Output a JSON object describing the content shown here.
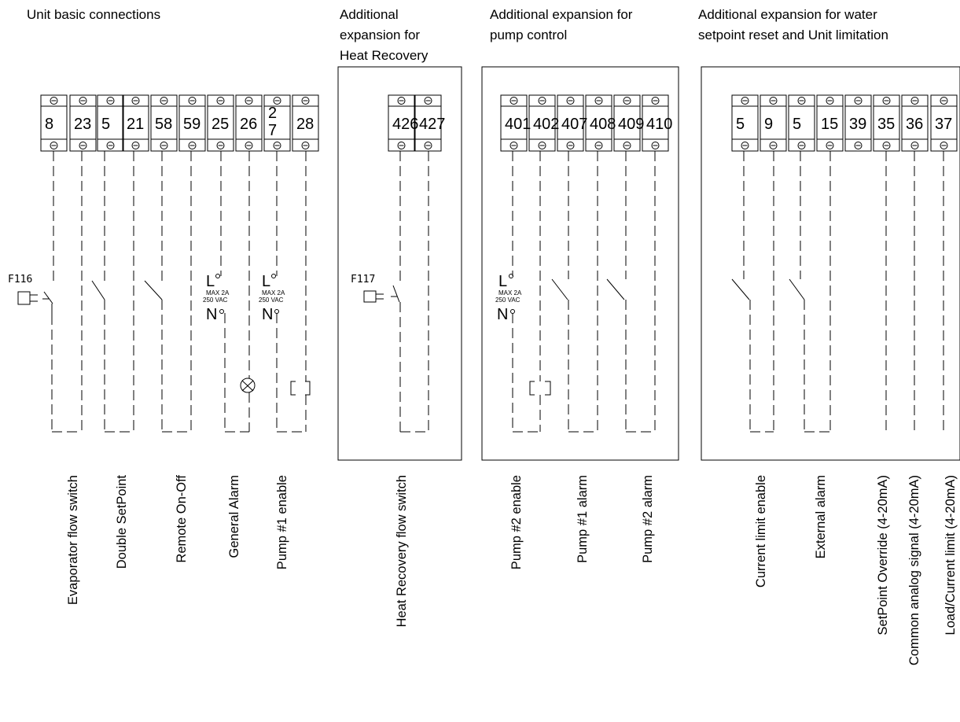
{
  "sections": [
    {
      "id": "basic",
      "title_lines": [
        "Unit basic connections"
      ]
    },
    {
      "id": "hr",
      "title_lines": [
        "Additional",
        "expansion for",
        "Heat Recovery"
      ]
    },
    {
      "id": "pump",
      "title_lines": [
        "Additional expansion for",
        "pump control"
      ]
    },
    {
      "id": "water",
      "title_lines": [
        "Additional expansion for water",
        "setpoint reset and Unit limitation"
      ]
    }
  ],
  "terminals": {
    "basic": [
      "8",
      "23",
      "5",
      "21",
      "58",
      "59",
      "25",
      "26",
      "2\n7",
      "28"
    ],
    "hr": [
      "426",
      "427"
    ],
    "pump": [
      "401",
      "402",
      "407",
      "408",
      "409",
      "410"
    ],
    "water": [
      "5",
      "9",
      "5",
      "15",
      "39",
      "35",
      "36",
      "37"
    ]
  },
  "signals": {
    "basic": [
      "Evaporator flow switch",
      "Double SetPoint",
      "Remote On-Off",
      "General Alarm",
      "Pump #1 enable"
    ],
    "hr": [
      "Heat Recovery flow switch"
    ],
    "pump": [
      "Pump #2 enable",
      "Pump #1 alarm",
      "Pump #2 alarm"
    ],
    "water": [
      "Current limit enable",
      "External alarm",
      "SetPoint Override (4-20mA)",
      "Common analog signal (4-20mA)",
      "Load/Current limit (4-20mA)"
    ]
  },
  "fuses": [
    "F116",
    "F117"
  ],
  "relay_text": {
    "l": "L",
    "n": "N",
    "max": "MAX  2A",
    "vac": "250  VAC"
  }
}
